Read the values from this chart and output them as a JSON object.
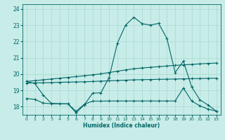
{
  "xlabel": "Humidex (Indice chaleur)",
  "bg_color": "#c8ece8",
  "grid_color": "#a8d8d0",
  "line_color": "#006666",
  "xlim": [
    -0.5,
    23.5
  ],
  "ylim": [
    17.5,
    24.3
  ],
  "x": [
    0,
    1,
    2,
    3,
    4,
    5,
    6,
    7,
    8,
    9,
    10,
    11,
    12,
    13,
    14,
    15,
    16,
    17,
    18,
    19,
    20,
    21,
    22,
    23
  ],
  "line1_y": [
    19.55,
    19.42,
    18.72,
    18.2,
    18.18,
    18.18,
    17.62,
    18.12,
    18.83,
    18.85,
    19.8,
    21.9,
    23.02,
    23.5,
    23.1,
    23.02,
    23.12,
    22.2,
    20.1,
    20.8,
    19.22,
    18.42,
    18.1,
    17.72
  ],
  "line2_y": [
    19.55,
    19.6,
    19.65,
    19.7,
    19.75,
    19.8,
    19.85,
    19.9,
    19.96,
    20.02,
    20.1,
    20.18,
    20.26,
    20.33,
    20.38,
    20.42,
    20.46,
    20.5,
    20.54,
    20.57,
    20.6,
    20.63,
    20.66,
    20.68
  ],
  "line3_y": [
    19.45,
    19.46,
    19.47,
    19.48,
    19.5,
    19.51,
    19.52,
    19.53,
    19.55,
    19.57,
    19.59,
    19.61,
    19.63,
    19.65,
    19.66,
    19.67,
    19.68,
    19.69,
    19.7,
    19.71,
    19.72,
    19.73,
    19.74,
    19.75
  ],
  "line4_y": [
    18.5,
    18.45,
    18.22,
    18.18,
    18.17,
    18.17,
    17.72,
    18.15,
    18.34,
    18.34,
    18.35,
    18.35,
    18.35,
    18.35,
    18.35,
    18.35,
    18.35,
    18.35,
    18.35,
    19.15,
    18.35,
    18.05,
    17.85,
    17.72
  ],
  "yticks": [
    18,
    19,
    20,
    21,
    22,
    23,
    24
  ],
  "xticks": [
    0,
    1,
    2,
    3,
    4,
    5,
    6,
    7,
    8,
    9,
    10,
    11,
    12,
    13,
    14,
    15,
    16,
    17,
    18,
    19,
    20,
    21,
    22,
    23
  ]
}
